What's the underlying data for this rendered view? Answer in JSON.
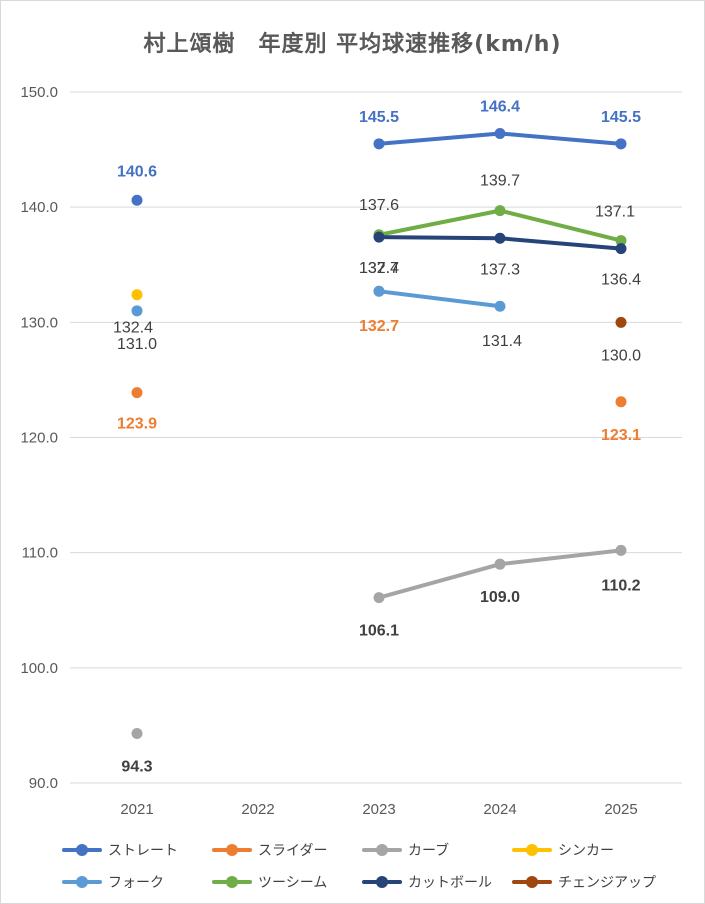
{
  "chart_data": {
    "type": "line",
    "title": "村上頌樹　年度別 平均球速推移(km/h)",
    "x": [
      "2021",
      "2022",
      "2023",
      "2024",
      "2025"
    ],
    "ylim": [
      90,
      150
    ],
    "yticks": [
      "90.0",
      "100.0",
      "110.0",
      "120.0",
      "130.0",
      "140.0",
      "150.0"
    ],
    "grid": true,
    "legend_position": "bottom",
    "series": [
      {
        "name": "ストレート",
        "color": "#4472c4",
        "values": [
          140.6,
          null,
          145.5,
          146.4,
          145.5
        ],
        "labels": [
          "140.6",
          "",
          "145.5",
          "146.4",
          "145.5"
        ]
      },
      {
        "name": "スライダー",
        "color": "#ed7d31",
        "values": [
          123.9,
          null,
          132.7,
          null,
          123.1
        ],
        "labels": [
          "123.9",
          "",
          "132.7",
          "",
          "123.1"
        ]
      },
      {
        "name": "カーブ",
        "color": "#a5a5a5",
        "values": [
          94.3,
          null,
          106.1,
          109.0,
          110.2
        ],
        "labels": [
          "94.3",
          "",
          "106.1",
          "109.0",
          "110.2"
        ]
      },
      {
        "name": "シンカー",
        "color": "#ffc000",
        "values": [
          132.4,
          null,
          null,
          null,
          null
        ],
        "labels": [
          "132.4",
          "",
          "",
          "",
          ""
        ]
      },
      {
        "name": "フォーク",
        "color": "#5b9bd5",
        "values": [
          131.0,
          null,
          132.7,
          131.4,
          null
        ],
        "labels": [
          "131.0",
          "",
          "132.7",
          "131.4",
          ""
        ]
      },
      {
        "name": "ツーシーム",
        "color": "#70ad47",
        "values": [
          null,
          null,
          137.6,
          139.7,
          137.1
        ],
        "labels": [
          "",
          "",
          "137.6",
          "139.7",
          "137.1"
        ]
      },
      {
        "name": "カットボール",
        "color": "#264478",
        "values": [
          null,
          null,
          137.4,
          137.3,
          136.4
        ],
        "labels": [
          "",
          "",
          "137.4",
          "137.3",
          "136.4"
        ]
      },
      {
        "name": "チェンジアップ",
        "color": "#9e480e",
        "values": [
          null,
          null,
          null,
          null,
          130.0
        ],
        "labels": [
          "",
          "",
          "",
          "",
          "130.0"
        ]
      }
    ]
  }
}
